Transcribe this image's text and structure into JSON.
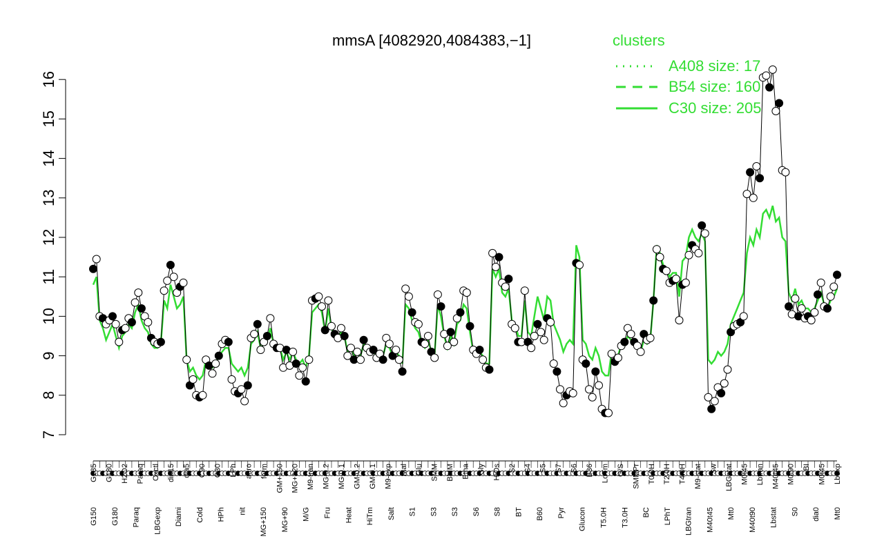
{
  "chart_data": {
    "type": "line",
    "title": "mmsA [4082920,4084383,−1]",
    "ylim": [
      7,
      16.3
    ],
    "yticks": [
      7,
      8,
      9,
      10,
      11,
      12,
      13,
      14,
      15,
      16
    ],
    "legend": {
      "title": "clusters",
      "placement": "top-right",
      "entries": [
        {
          "label": "A408 size: 17",
          "style": "dotted"
        },
        {
          "label": "B54 size: 160",
          "style": "dashed"
        },
        {
          "label": "C30 size: 205",
          "style": "solid"
        }
      ]
    },
    "colors": {
      "cluster_line": "#33dd33",
      "series_line": "#000000",
      "filled_point": "#000000",
      "open_point": "#ffffff"
    },
    "x_labels_upper": [
      "G135",
      "G180",
      "H2O2",
      "Paraq",
      "Oxctl",
      "dia15",
      "dia5",
      "C90",
      "C30",
      "LPh",
      "aero",
      "ferm",
      "GM+150",
      "MG+120",
      "M9-tran",
      "MG-0.2",
      "MG-0.1",
      "GM-0.2",
      "GM-0.1",
      "M9-exp",
      "Mal",
      "Glu",
      "SMM",
      "BMM",
      "Etha",
      "Gly",
      "HiOs",
      "S2",
      "S4",
      "S5",
      "S7",
      "S6",
      "B36",
      "LoTm",
      "G/S",
      "SMMPr",
      "T0.0H",
      "T2.0H",
      "T4.0H",
      "M9-stat",
      "Sw",
      "LBGstat",
      "M0t45",
      "Lbtran",
      "M40t45",
      "M0t90",
      "BI",
      "M0t45",
      "Lbexp"
    ],
    "x_labels_lower": [
      "G150",
      "G180",
      "Paraq",
      "LBGexp",
      "Diami",
      "Cold",
      "HPh",
      "nit",
      "MG+150",
      "MG+90",
      "M/G",
      "Fru",
      "Heat",
      "HiTm",
      "Salt",
      "S1",
      "S3",
      "S3",
      "S6",
      "S8",
      "BT",
      "B60",
      "Pyr",
      "Glucon",
      "T5.0H",
      "T3.0H",
      "BC",
      "LPhT",
      "LBGtran",
      "M40t45",
      "Mt0",
      "M40t90",
      "Lbstat",
      "S0",
      "dia0",
      "Mt0"
    ],
    "series": [
      {
        "name": "",
        "values": [
          11.2,
          11.45,
          10.0,
          9.95,
          9.8,
          9.9,
          10.0,
          9.8,
          9.35,
          9.65,
          9.7,
          9.95,
          9.85,
          10.35,
          10.6,
          10.2,
          10.0,
          9.85,
          9.45,
          9.35,
          9.3,
          9.35,
          10.65,
          10.9,
          11.3,
          11.0,
          10.6,
          10.75,
          10.85,
          8.9,
          8.25,
          8.4,
          8.0,
          7.95,
          8.0,
          8.9,
          8.75,
          8.55,
          8.8,
          9.0,
          9.3,
          9.4,
          9.35,
          8.4,
          8.1,
          8.05,
          8.15,
          7.85,
          8.25,
          9.45,
          9.55,
          9.8,
          9.15,
          9.35,
          9.5,
          9.95,
          9.3,
          9.2,
          9.2,
          8.7,
          9.15,
          8.75,
          9.1,
          8.8,
          8.5,
          8.7,
          8.35,
          8.9,
          10.4,
          10.45,
          10.5,
          10.25,
          9.65,
          10.4,
          9.75,
          9.55,
          9.45,
          9.7,
          9.5,
          9.0,
          9.2,
          8.9,
          9.1,
          8.9,
          9.4,
          9.2,
          9.1,
          9.15,
          8.95,
          9.05,
          8.9,
          9.45,
          9.3,
          9.0,
          9.15,
          8.9,
          8.6,
          10.7,
          10.5,
          10.1,
          9.85,
          9.8,
          9.35,
          9.3,
          9.5,
          9.1,
          8.95,
          10.55,
          10.25,
          9.55,
          9.25,
          9.6,
          9.35,
          9.95,
          10.1,
          10.65,
          10.6,
          9.75,
          9.15,
          9.05,
          9.15,
          8.9,
          8.7,
          8.65,
          11.6,
          11.25,
          11.5,
          10.85,
          10.75,
          10.95,
          9.8,
          9.7,
          9.35,
          9.35,
          10.65,
          9.35,
          9.2,
          9.5,
          9.8,
          9.6,
          9.4,
          9.95,
          9.85,
          8.8,
          8.6,
          8.15,
          7.8,
          8.0,
          8.1,
          8.05,
          11.35,
          11.3,
          8.9,
          8.8,
          8.15,
          7.95,
          8.6,
          8.25,
          7.65,
          7.55,
          7.55,
          9.05,
          8.85,
          8.95,
          9.25,
          9.35,
          9.7,
          9.55,
          9.35,
          9.25,
          9.1,
          9.55,
          9.4,
          9.45,
          10.4,
          11.7,
          11.5,
          11.2,
          11.15,
          10.85,
          10.9,
          10.95,
          9.9,
          10.8,
          10.85,
          11.55,
          11.8,
          11.7,
          11.6,
          12.3,
          12.1,
          7.95,
          7.65,
          7.85,
          8.2,
          8.05,
          8.3,
          8.65,
          9.6,
          9.75,
          9.8,
          9.85,
          10.0,
          13.1,
          13.65,
          13.0,
          13.8,
          13.5,
          16.05,
          16.1,
          15.8,
          16.25,
          15.2,
          15.4,
          13.7,
          13.65,
          10.25,
          10.05,
          10.45,
          10.0,
          10.2,
          9.95,
          10.0,
          9.9,
          10.1,
          10.55,
          10.85,
          10.25,
          10.2,
          10.5,
          10.75,
          11.05
        ]
      },
      {
        "name": "",
        "values": [
          10.8,
          11.0,
          9.9,
          9.7,
          9.4,
          9.6,
          9.8,
          9.5,
          9.2,
          9.5,
          9.6,
          9.8,
          9.7,
          10.1,
          10.3,
          9.9,
          9.7,
          9.6,
          9.3,
          9.2,
          9.2,
          9.3,
          10.4,
          10.2,
          10.8,
          10.5,
          10.2,
          10.3,
          10.5,
          8.9,
          8.6,
          8.7,
          8.5,
          8.4,
          8.5,
          8.9,
          8.8,
          8.7,
          8.8,
          9.0,
          9.1,
          9.2,
          9.2,
          8.8,
          8.7,
          8.6,
          8.7,
          8.5,
          8.7,
          9.3,
          9.4,
          9.6,
          9.2,
          9.3,
          9.4,
          9.7,
          9.3,
          9.2,
          9.2,
          8.9,
          9.1,
          8.9,
          9.1,
          8.9,
          8.8,
          8.9,
          8.7,
          9.0,
          10.1,
          10.2,
          10.3,
          10.1,
          9.6,
          10.2,
          9.7,
          9.5,
          9.4,
          9.6,
          9.5,
          9.1,
          9.2,
          9.0,
          9.1,
          9.0,
          9.3,
          9.2,
          9.1,
          9.1,
          9.0,
          9.1,
          9.0,
          9.3,
          9.2,
          9.0,
          9.1,
          9.0,
          8.8,
          10.3,
          10.2,
          9.9,
          9.7,
          9.6,
          9.3,
          9.2,
          9.4,
          9.1,
          9.0,
          10.3,
          10.0,
          9.5,
          9.2,
          9.5,
          9.3,
          9.8,
          9.9,
          10.3,
          10.2,
          9.6,
          9.1,
          9.0,
          9.1,
          9.0,
          8.8,
          8.8,
          11.2,
          11.0,
          11.2,
          10.6,
          10.5,
          10.7,
          9.9,
          9.8,
          9.5,
          9.5,
          10.4,
          9.6,
          9.5,
          10.0,
          10.5,
          10.2,
          9.9,
          10.5,
          10.4,
          9.8,
          9.6,
          9.4,
          9.1,
          9.3,
          9.4,
          9.3,
          11.8,
          11.5,
          9.4,
          9.3,
          9.0,
          8.9,
          9.2,
          9.0,
          8.6,
          8.5,
          8.5,
          9.1,
          9.0,
          9.0,
          9.3,
          9.3,
          9.5,
          9.4,
          9.3,
          9.2,
          9.1,
          9.4,
          9.3,
          9.4,
          10.4,
          11.8,
          11.6,
          11.3,
          11.2,
          11.0,
          11.1,
          11.1,
          10.5,
          11.4,
          11.5,
          12.0,
          12.2,
          12.0,
          11.9,
          12.1,
          11.9,
          8.9,
          8.8,
          8.9,
          9.1,
          9.0,
          9.1,
          9.3,
          9.8,
          10.0,
          10.2,
          10.4,
          10.6,
          11.6,
          12.0,
          11.8,
          12.2,
          12.0,
          12.6,
          12.7,
          12.5,
          12.8,
          12.4,
          12.5,
          12.0,
          11.9,
          10.6,
          10.4,
          10.7,
          10.3,
          10.4,
          10.2,
          10.2,
          10.1,
          10.2,
          10.4,
          10.6,
          10.3,
          10.2,
          10.4,
          10.5,
          10.7
        ]
      }
    ]
  }
}
